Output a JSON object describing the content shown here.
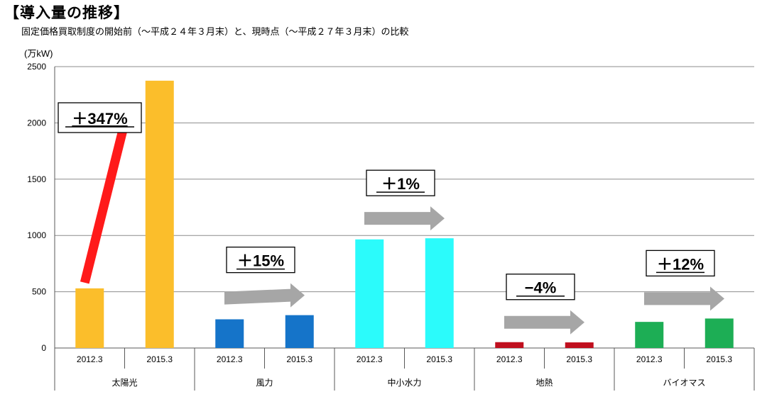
{
  "title": "【導入量の推移】",
  "subtitle": "固定価格買取制度の開始前（～平成２４年３月末）と、現時点（～平成２７年３月末）の比較",
  "chart_data": {
    "type": "bar",
    "ylabel": "(万kW)",
    "ylim": [
      0,
      2500
    ],
    "yticks": [
      0,
      500,
      1000,
      1500,
      2000,
      2500
    ],
    "grid": true,
    "groups": [
      {
        "name": "太陽光",
        "color": "#FBBE2B",
        "arrow_color": "#FF1A1A",
        "change": "＋347%",
        "periods": [
          "2012.3",
          "2015.3"
        ],
        "values": [
          530,
          2375
        ]
      },
      {
        "name": "風力",
        "color": "#1574C9",
        "arrow_color": "#A6A6A6",
        "change": "＋15%",
        "periods": [
          "2012.3",
          "2015.3"
        ],
        "values": [
          255,
          292
        ]
      },
      {
        "name": "中小水力",
        "color": "#2BFBFB",
        "arrow_color": "#A6A6A6",
        "change": "＋1%",
        "periods": [
          "2012.3",
          "2015.3"
        ],
        "values": [
          965,
          975
        ]
      },
      {
        "name": "地熱",
        "color": "#C00F1E",
        "arrow_color": "#A6A6A6",
        "change": "−4%",
        "periods": [
          "2012.3",
          "2015.3"
        ],
        "values": [
          52,
          50
        ]
      },
      {
        "name": "バイオマス",
        "color": "#1DAE55",
        "arrow_color": "#A6A6A6",
        "change": "＋12%",
        "periods": [
          "2012.3",
          "2015.3"
        ],
        "values": [
          232,
          262
        ]
      }
    ]
  }
}
